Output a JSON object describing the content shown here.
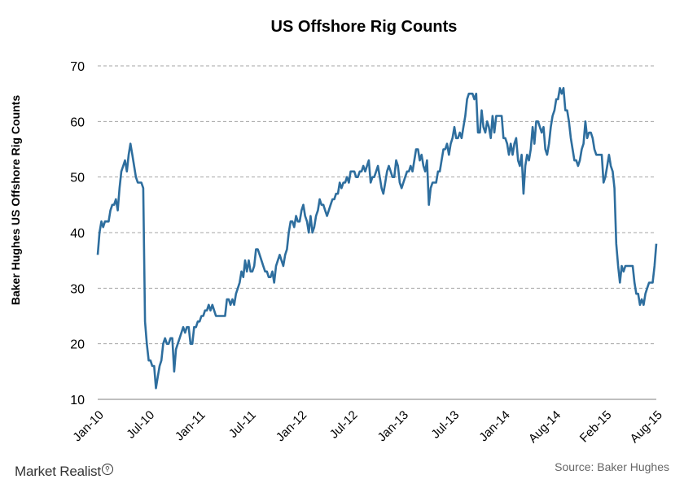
{
  "chart_data": {
    "type": "line",
    "title": "US Offshore  Rig Counts",
    "ylabel": "Baker Hughes US Offshore Rig Counts",
    "xlabel": "",
    "ylim": [
      10,
      70
    ],
    "yticks": [
      10,
      20,
      30,
      40,
      50,
      60,
      70
    ],
    "xticks": [
      "Jan-10",
      "Jul-10",
      "Jan-11",
      "Jul-11",
      "Jan-12",
      "Jul-12",
      "Jan-13",
      "Jul-13",
      "Jan-14",
      "Aug-14",
      "Feb-15",
      "Aug-15"
    ],
    "grid": "horizontal dashed",
    "series": [
      {
        "color": "#2e6e9e",
        "values": [
          36,
          40,
          42,
          41,
          42,
          42,
          42,
          44,
          45,
          45,
          46,
          44,
          48,
          51,
          52,
          53,
          51,
          54,
          56,
          54,
          52,
          50,
          49,
          49,
          49,
          48,
          24,
          20,
          17,
          17,
          16,
          16,
          12,
          14,
          16,
          17,
          20,
          21,
          20,
          20,
          21,
          21,
          15,
          19,
          20,
          21,
          22,
          23,
          22,
          23,
          23,
          20,
          20,
          23,
          23,
          24,
          24,
          25,
          25,
          26,
          26,
          27,
          26,
          27,
          26,
          25,
          25,
          25,
          25,
          25,
          25,
          28,
          28,
          27,
          28,
          27,
          29,
          30,
          31,
          33,
          32,
          35,
          33,
          35,
          33,
          33,
          34,
          37,
          37,
          36,
          35,
          34,
          33,
          33,
          32,
          32,
          33,
          31,
          34,
          35,
          36,
          35,
          34,
          36,
          37,
          40,
          42,
          42,
          41,
          43,
          42,
          42,
          44,
          45,
          43,
          42,
          40,
          43,
          40,
          41,
          43,
          44,
          46,
          45,
          45,
          44,
          43,
          44,
          45,
          46,
          46,
          47,
          47,
          49,
          48,
          49,
          49,
          50,
          49,
          51,
          51,
          51,
          50,
          50,
          51,
          51,
          52,
          51,
          52,
          53,
          49,
          50,
          50,
          51,
          52,
          50,
          48,
          47,
          49,
          51,
          52,
          51,
          50,
          50,
          53,
          52,
          49,
          48,
          49,
          50,
          51,
          51,
          52,
          51,
          53,
          55,
          55,
          53,
          54,
          52,
          51,
          53,
          45,
          48,
          49,
          49,
          49,
          51,
          51,
          53,
          55,
          55,
          56,
          54,
          56,
          57,
          59,
          57,
          57,
          58,
          57,
          59,
          61,
          64,
          65,
          65,
          65,
          64,
          65,
          58,
          58,
          62,
          59,
          58,
          60,
          59,
          57,
          61,
          58,
          61,
          61,
          61,
          61,
          57,
          57,
          56,
          54,
          56,
          54,
          56,
          57,
          53,
          52,
          54,
          47,
          52,
          54,
          53,
          55,
          59,
          56,
          60,
          60,
          59,
          58,
          59,
          55,
          54,
          56,
          59,
          61,
          62,
          64,
          64,
          66,
          65,
          66,
          62,
          62,
          60,
          57,
          55,
          53,
          53,
          52,
          53,
          55,
          56,
          60,
          57,
          58,
          58,
          57,
          55,
          54,
          54,
          54,
          54,
          49,
          50,
          52,
          54,
          52,
          51,
          48,
          38,
          34,
          31,
          34,
          33,
          34,
          34,
          34,
          34,
          34,
          31,
          29,
          29,
          27,
          28,
          27,
          29,
          30,
          31,
          31,
          31,
          34,
          38
        ],
        "x_start": "Jan-10",
        "x_end": "Aug-15"
      }
    ]
  },
  "footer": {
    "logo_text": "Market Realist",
    "source": "Source: Baker Hughes"
  }
}
